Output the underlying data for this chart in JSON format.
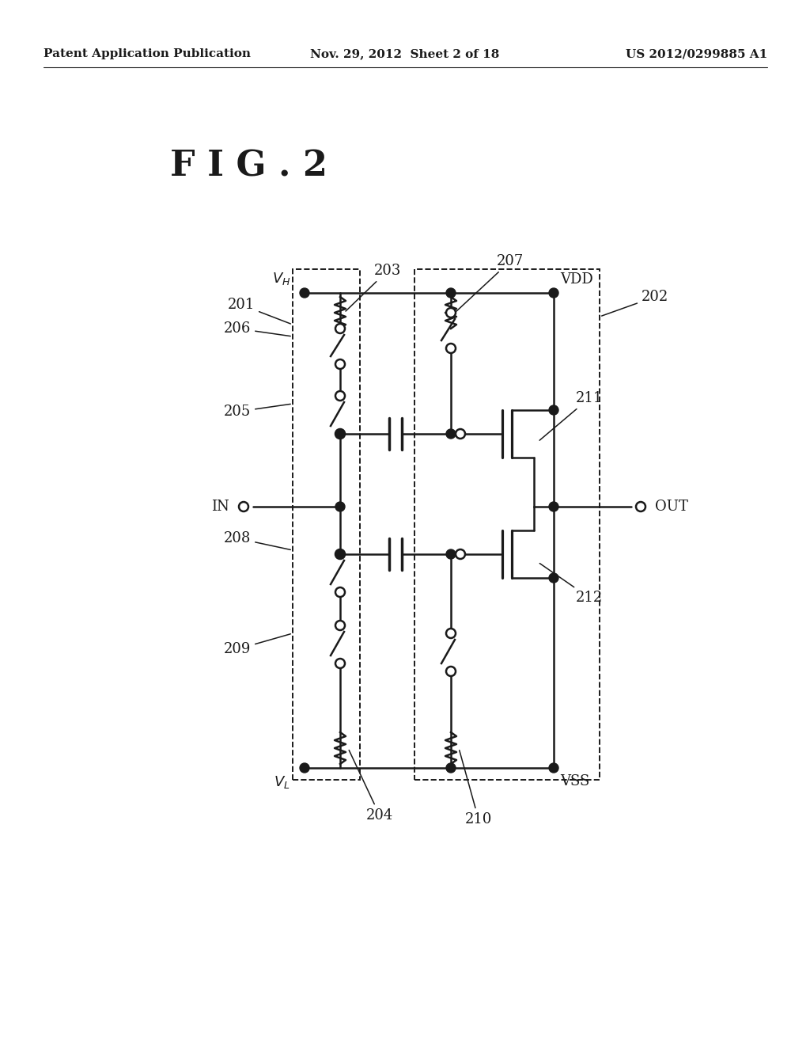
{
  "bg_color": "#ffffff",
  "line_color": "#1a1a1a",
  "header_left": "Patent Application Publication",
  "header_mid": "Nov. 29, 2012  Sheet 2 of 18",
  "header_right": "US 2012/0299885 A1",
  "fig_title": "F I G . 2"
}
